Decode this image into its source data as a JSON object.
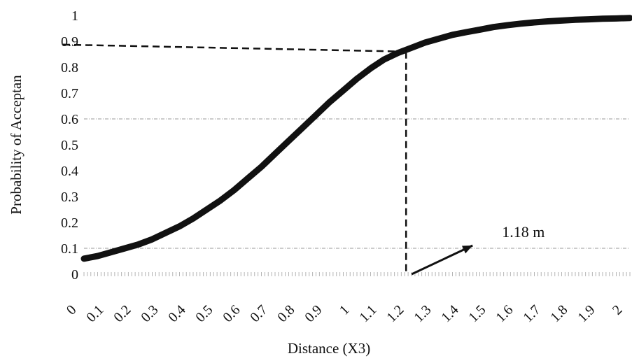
{
  "chart_data": {
    "type": "line",
    "title": "",
    "xlabel": "Distance (X3)",
    "ylabel": "Probability of Acceptan",
    "xlim": [
      0,
      2
    ],
    "ylim": [
      0,
      1
    ],
    "x_tick_labels": [
      "0",
      "0.1",
      "0.2",
      "0.3",
      "0.4",
      "0.5",
      "0.6",
      "0.7",
      "0.8",
      "0.9",
      "1",
      "1.1",
      "1.2",
      "1.3",
      "1.4",
      "1.5",
      "1.6",
      "1.7",
      "1.8",
      "1.9",
      "2"
    ],
    "y_tick_labels": [
      "0",
      "0.1",
      "0.2",
      "0.3",
      "0.4",
      "0.5",
      "0.6",
      "0.7",
      "0.8",
      "0.9",
      "1"
    ],
    "gridlines_y": [
      0.1,
      0.6
    ],
    "legend": "none",
    "line_color": "#111111",
    "series": [
      {
        "x": [
          0.0,
          0.05,
          0.1,
          0.15,
          0.2,
          0.25,
          0.3,
          0.35,
          0.4,
          0.45,
          0.5,
          0.55,
          0.6,
          0.65,
          0.7,
          0.75,
          0.8,
          0.85,
          0.9,
          0.95,
          1.0,
          1.05,
          1.1,
          1.15,
          1.2,
          1.25,
          1.3,
          1.35,
          1.4,
          1.45,
          1.5,
          1.55,
          1.6,
          1.65,
          1.7,
          1.75,
          1.8,
          1.85,
          1.9,
          1.95,
          2.0
        ],
        "y": [
          0.06,
          0.07,
          0.085,
          0.1,
          0.115,
          0.135,
          0.16,
          0.185,
          0.215,
          0.25,
          0.285,
          0.325,
          0.37,
          0.415,
          0.465,
          0.515,
          0.565,
          0.615,
          0.665,
          0.71,
          0.755,
          0.795,
          0.83,
          0.855,
          0.875,
          0.895,
          0.91,
          0.925,
          0.935,
          0.945,
          0.955,
          0.962,
          0.968,
          0.973,
          0.977,
          0.98,
          0.983,
          0.985,
          0.987,
          0.988,
          0.99
        ]
      }
    ],
    "annotations": {
      "label": "1.18 m",
      "reference_x": 1.18,
      "reference_y": 0.86
    }
  }
}
